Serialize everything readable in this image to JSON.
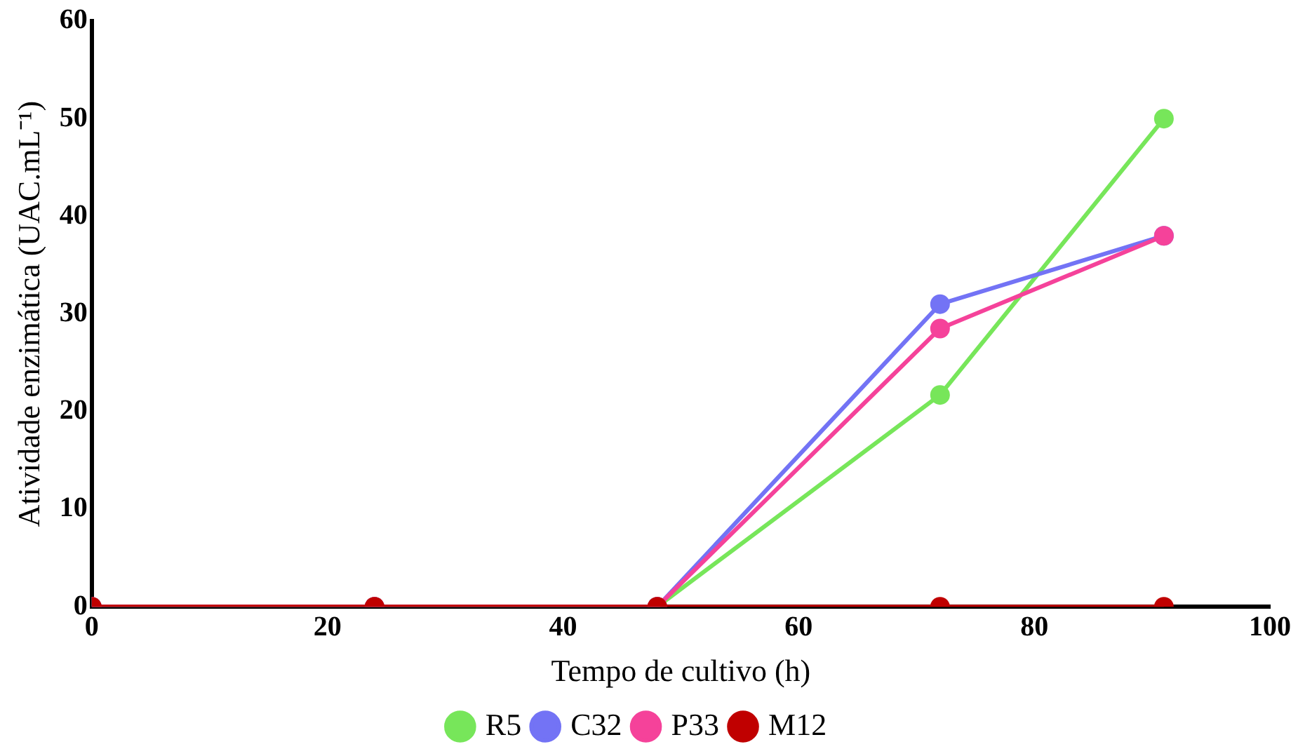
{
  "chart_data": {
    "type": "line",
    "xlabel": "Tempo de cultivo (h)",
    "ylabel": "Atividade enzimática (UAC.mL⁻¹)",
    "x": [
      0,
      24,
      48,
      72,
      91
    ],
    "series": [
      {
        "name": "R5",
        "color": "#77e65a",
        "values": [
          0,
          0,
          0,
          21.7,
          50
        ]
      },
      {
        "name": "C32",
        "color": "#7373f5",
        "values": [
          0,
          0,
          0,
          31,
          38
        ]
      },
      {
        "name": "P33",
        "color": "#f5429a",
        "values": [
          0,
          0,
          0,
          28.5,
          38
        ]
      },
      {
        "name": "M12",
        "color": "#c00000",
        "values": [
          0,
          0,
          0,
          0,
          0
        ]
      }
    ],
    "xlim": [
      0,
      100
    ],
    "xticks": [
      0,
      20,
      40,
      60,
      80,
      100
    ],
    "ylim": [
      0,
      60
    ],
    "yticks": [
      0,
      10,
      20,
      30,
      40,
      50,
      60
    ],
    "grid": false,
    "legend": "bottom",
    "marker": "circle",
    "line_style": "solid"
  }
}
